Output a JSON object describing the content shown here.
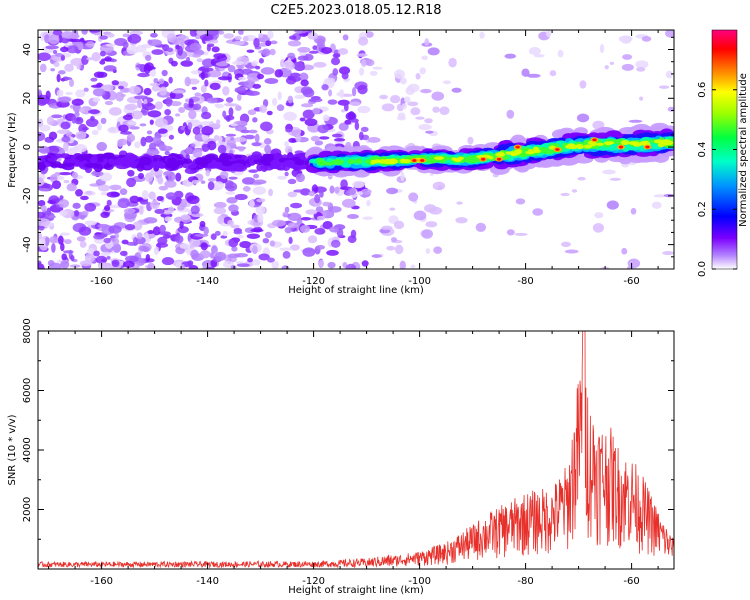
{
  "title": "C2E5.2023.018.05.12.R18",
  "chart_data": [
    {
      "type": "heatmap",
      "xlabel": "Height of straight line (km)",
      "ylabel": "Frequency (Hz)",
      "xlim": [
        -172,
        -52
      ],
      "ylim": [
        -50,
        48
      ],
      "xticks": [
        -160,
        -140,
        -120,
        -100,
        -80,
        -60
      ],
      "yticks": [
        -40,
        -20,
        0,
        20,
        40
      ],
      "colorbar": {
        "label": "Normalized spectral amplitude",
        "range": [
          0,
          0.8
        ],
        "ticks": [
          0.0,
          0.2,
          0.4,
          0.6
        ],
        "colormap": [
          "#ffffff",
          "#8e00ff",
          "#0000ff",
          "#00c8ff",
          "#00ff80",
          "#66ff00",
          "#ffff00",
          "#ff8000",
          "#ff0000",
          "#ff0088"
        ]
      },
      "ridge": {
        "description_points_x": [
          -120,
          -110,
          -100,
          -90,
          -80,
          -70,
          -60,
          -52
        ],
        "description_points_y": [
          -6,
          -6,
          -5,
          -5,
          -2,
          1,
          1,
          2
        ]
      }
    },
    {
      "type": "line",
      "xlabel": "Height of straight line (km)",
      "ylabel": "SNR (10 * v/v)",
      "xlim": [
        -172,
        -52
      ],
      "ylim": [
        0,
        8000
      ],
      "xticks": [
        -160,
        -140,
        -120,
        -100,
        -80,
        -60
      ],
      "yticks": [
        2000,
        4000,
        6000,
        8000
      ],
      "color": "#e8302b",
      "envelope_x": [
        -172,
        -120,
        -110,
        -100,
        -95,
        -90,
        -88,
        -85,
        -80,
        -75,
        -72,
        -70,
        -69,
        -68,
        -66,
        -64,
        -62,
        -60,
        -58,
        -55,
        -52
      ],
      "envelope_y": [
        180,
        200,
        300,
        600,
        900,
        1500,
        1800,
        2100,
        2600,
        2800,
        3600,
        6600,
        8000,
        5700,
        5000,
        4800,
        4000,
        3800,
        3200,
        2000,
        1000
      ]
    }
  ]
}
